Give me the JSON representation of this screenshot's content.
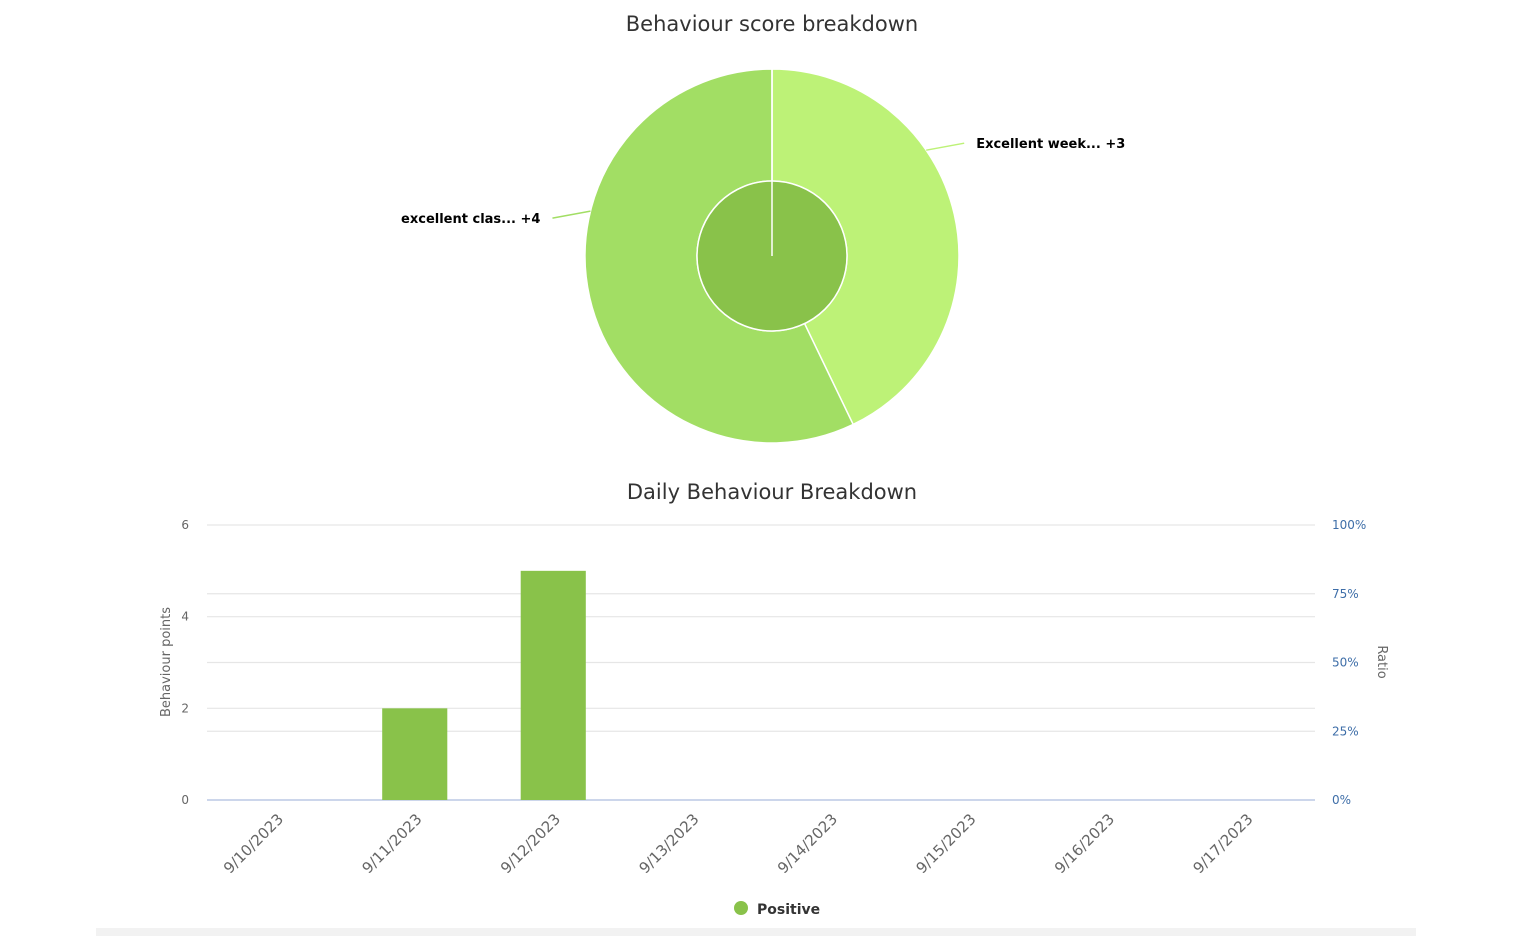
{
  "colors": {
    "outer_slice_1": "#bdf277",
    "outer_slice_2": "#a2de64",
    "inner_ring": "#89c24a",
    "bar": "#89c24a",
    "legend_marker": "#89c24a",
    "grid": "#e6e6e6",
    "baseline": "#ccd6eb",
    "right_axis_text": "#3e6ea8"
  },
  "chart_data": [
    {
      "type": "pie",
      "title": "Behaviour score breakdown",
      "variant": "donut with inner category ring",
      "outer_series": [
        {
          "label": "Excellent week... +3",
          "value": 3
        },
        {
          "label": "excellent clas... +4",
          "value": 4
        }
      ],
      "inner_series": [
        {
          "label": "Positive",
          "value": 7
        }
      ]
    },
    {
      "type": "bar",
      "title": "Daily Behaviour Breakdown",
      "categories": [
        "9/10/2023",
        "9/11/2023",
        "9/12/2023",
        "9/13/2023",
        "9/14/2023",
        "9/15/2023",
        "9/16/2023",
        "9/17/2023"
      ],
      "series": [
        {
          "name": "Positive",
          "values": [
            0,
            2,
            5,
            0,
            0,
            0,
            0,
            0
          ]
        }
      ],
      "ylabel": "Behaviour points",
      "ylim": [
        0,
        6
      ],
      "yticks": [
        0,
        2,
        4,
        6
      ],
      "y2label": "Ratio",
      "y2lim": [
        0,
        100
      ],
      "y2ticks": [
        "0%",
        "25%",
        "50%",
        "75%",
        "100%"
      ],
      "grid": true,
      "legend_position": "bottom-center"
    }
  ]
}
